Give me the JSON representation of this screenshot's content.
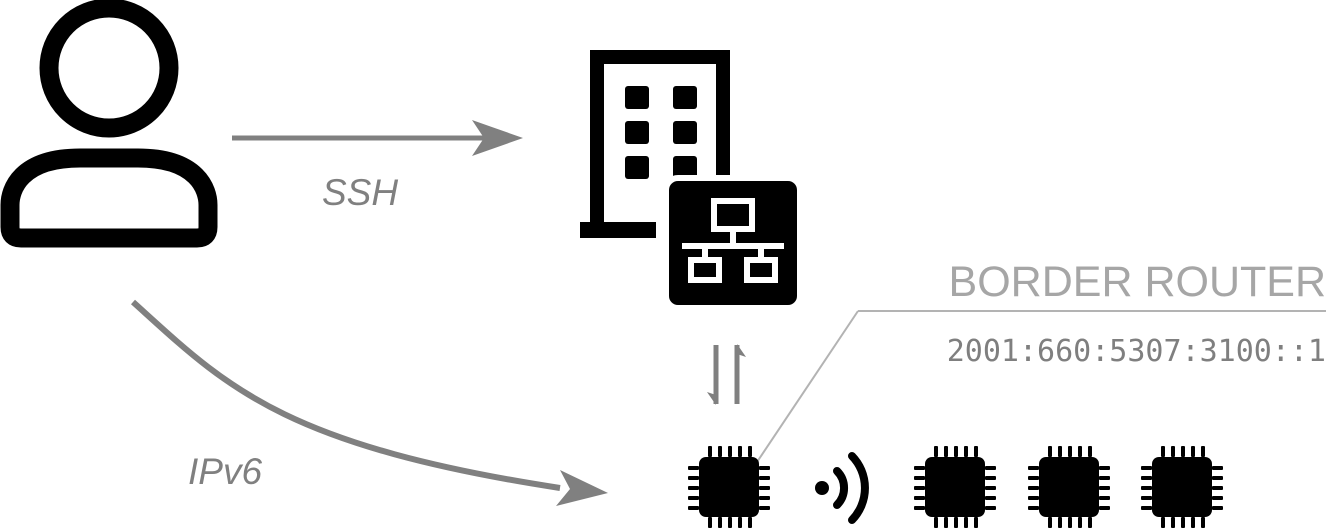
{
  "diagram": {
    "connections": {
      "ssh_label": "SSH",
      "ipv6_label": "IPv6"
    },
    "border_router": {
      "title": "BORDER ROUTER",
      "address": "2001:660:5307:3100::1"
    },
    "icons": {
      "user": "user-icon",
      "building": "building-icon",
      "network": "network-icon",
      "exchange": "exchange-arrows-icon",
      "chip": "chip-icon",
      "wireless": "wireless-icon"
    },
    "colors": {
      "icon": "#000000",
      "arrow": "#808080",
      "text": "#808080",
      "title": "#a6a6a6",
      "leader_line": "#b3b3b3"
    }
  }
}
